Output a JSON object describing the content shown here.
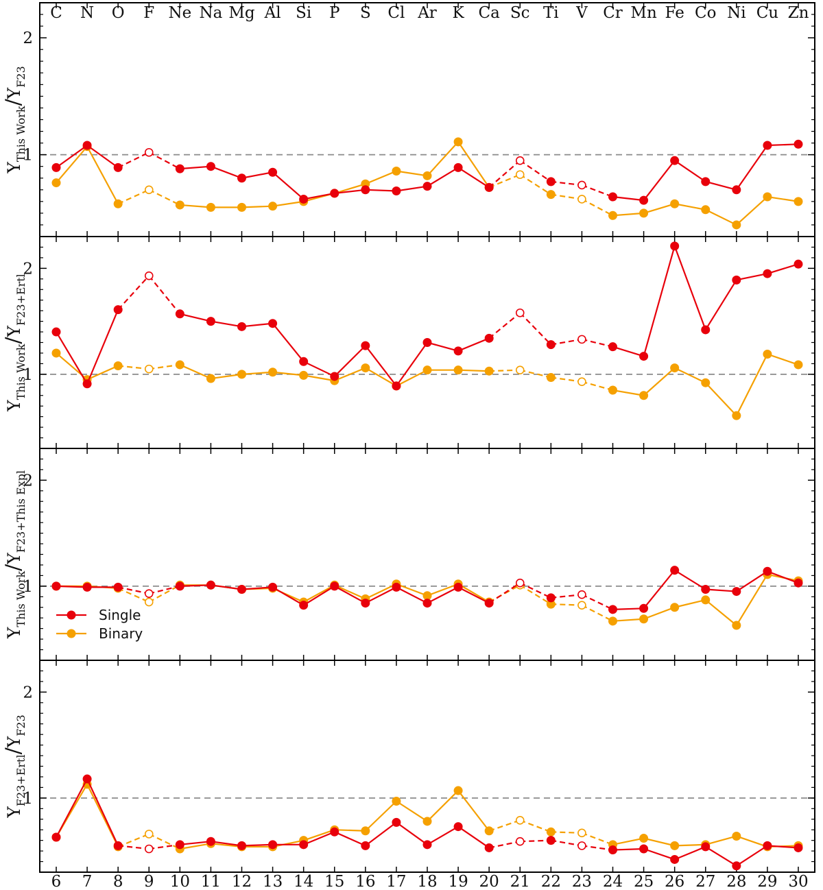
{
  "colors": {
    "single": "#e8000b",
    "binary": "#f5a000",
    "reference": "#8a8a8a",
    "axis": "#000000"
  },
  "chart_data": {
    "type": "line",
    "x": [
      6,
      7,
      8,
      9,
      10,
      11,
      12,
      13,
      14,
      15,
      16,
      17,
      18,
      19,
      20,
      21,
      22,
      23,
      24,
      25,
      26,
      27,
      28,
      29,
      30
    ],
    "xtick_labels": [
      "6",
      "7",
      "8",
      "9",
      "10",
      "11",
      "12",
      "13",
      "14",
      "15",
      "16",
      "17",
      "18",
      "19",
      "20",
      "21",
      "22",
      "23",
      "24",
      "25",
      "26",
      "27",
      "28",
      "29",
      "30"
    ],
    "elements": [
      "C",
      "N",
      "O",
      "F",
      "Ne",
      "Na",
      "Mg",
      "Al",
      "Si",
      "P",
      "S",
      "Cl",
      "Ar",
      "K",
      "Ca",
      "Sc",
      "Ti",
      "V",
      "Cr",
      "Mn",
      "Fe",
      "Co",
      "Ni",
      "Cu",
      "Zn"
    ],
    "open_markers_x": [
      9,
      21,
      23
    ],
    "dashed_segments": [
      [
        8,
        9
      ],
      [
        9,
        10
      ],
      [
        20,
        21
      ],
      [
        21,
        22
      ],
      [
        22,
        23
      ],
      [
        23,
        24
      ]
    ],
    "reference_line": 1,
    "ylim": [
      0.3,
      2.3
    ],
    "yticks": [
      1,
      2
    ],
    "ytick_labels": [
      "1",
      "2"
    ],
    "legend": {
      "location": "lower-left",
      "panel": 2,
      "entries": [
        "Single",
        "Binary"
      ]
    },
    "panels": [
      {
        "ylabel_main": "Y",
        "ylabel_num_sub": "This Work",
        "ylabel_den_sub": "F23",
        "series": [
          {
            "name": "Single",
            "values": [
              0.89,
              1.08,
              0.89,
              1.02,
              0.88,
              0.9,
              0.8,
              0.85,
              0.62,
              0.67,
              0.7,
              0.69,
              0.73,
              0.89,
              0.72,
              0.95,
              0.77,
              0.74,
              0.64,
              0.61,
              0.95,
              0.77,
              0.7,
              1.08,
              1.09
            ]
          },
          {
            "name": "Binary",
            "values": [
              0.76,
              1.07,
              0.58,
              0.7,
              0.57,
              0.55,
              0.55,
              0.56,
              0.6,
              0.67,
              0.75,
              0.86,
              0.82,
              1.11,
              0.72,
              0.83,
              0.66,
              0.62,
              0.48,
              0.5,
              0.58,
              0.53,
              0.4,
              0.64,
              0.6
            ]
          }
        ]
      },
      {
        "ylabel_main": "Y",
        "ylabel_num_sub": "This Work",
        "ylabel_den_sub": "F23+Ertl",
        "series": [
          {
            "name": "Single",
            "values": [
              1.4,
              0.91,
              1.61,
              1.93,
              1.57,
              1.5,
              1.45,
              1.48,
              1.12,
              0.98,
              1.27,
              0.89,
              1.3,
              1.22,
              1.34,
              1.58,
              1.28,
              1.33,
              1.26,
              1.17,
              2.21,
              1.42,
              1.89,
              1.95,
              2.04
            ]
          },
          {
            "name": "Binary",
            "values": [
              1.2,
              0.95,
              1.08,
              1.05,
              1.09,
              0.96,
              1.0,
              1.02,
              0.99,
              0.94,
              1.06,
              0.89,
              1.04,
              1.04,
              1.03,
              1.04,
              0.97,
              0.93,
              0.85,
              0.8,
              1.06,
              0.92,
              0.61,
              1.19,
              1.09
            ]
          }
        ]
      },
      {
        "ylabel_main": "Y",
        "ylabel_num_sub": "This Work",
        "ylabel_den_sub": "F23+This Expl",
        "series": [
          {
            "name": "Single",
            "values": [
              1.0,
              0.99,
              0.99,
              0.93,
              1.0,
              1.01,
              0.97,
              0.99,
              0.82,
              1.0,
              0.84,
              0.99,
              0.84,
              0.99,
              0.84,
              1.03,
              0.89,
              0.92,
              0.78,
              0.79,
              1.15,
              0.97,
              0.95,
              1.14,
              1.03
            ]
          },
          {
            "name": "Binary",
            "values": [
              1.0,
              1.0,
              0.98,
              0.85,
              1.01,
              1.01,
              0.97,
              0.98,
              0.85,
              1.01,
              0.88,
              1.02,
              0.91,
              1.02,
              0.85,
              1.01,
              0.83,
              0.82,
              0.67,
              0.69,
              0.8,
              0.87,
              0.63,
              1.11,
              1.05
            ]
          }
        ]
      },
      {
        "ylabel_main": "Y",
        "ylabel_num_sub": "F23+Ertl",
        "ylabel_den_sub": "F23",
        "series": [
          {
            "name": "Single",
            "values": [
              0.63,
              1.18,
              0.55,
              0.52,
              0.56,
              0.59,
              0.55,
              0.56,
              0.56,
              0.68,
              0.55,
              0.77,
              0.56,
              0.73,
              0.53,
              0.59,
              0.6,
              0.55,
              0.51,
              0.52,
              0.42,
              0.54,
              0.36,
              0.55,
              0.53
            ]
          },
          {
            "name": "Binary",
            "values": [
              0.63,
              1.13,
              0.54,
              0.66,
              0.52,
              0.57,
              0.54,
              0.54,
              0.6,
              0.7,
              0.69,
              0.97,
              0.78,
              1.07,
              0.69,
              0.79,
              0.68,
              0.67,
              0.56,
              0.62,
              0.55,
              0.56,
              0.64,
              0.54,
              0.55
            ]
          }
        ]
      }
    ]
  }
}
